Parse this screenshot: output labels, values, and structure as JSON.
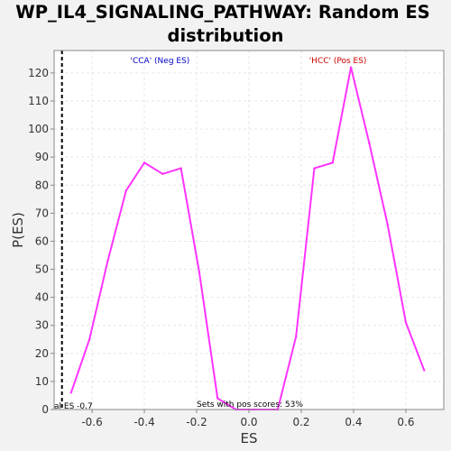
{
  "chart_data": {
    "type": "line",
    "title_line1": "WP_IL4_SIGNALING_PATHWAY: Random ES",
    "title_line2": "distribution",
    "xlabel": "ES",
    "ylabel": "P(ES)",
    "xlim": [
      -0.745,
      0.745
    ],
    "ylim": [
      0,
      128
    ],
    "x_ticks": [
      -0.6,
      -0.4,
      -0.2,
      0.0,
      0.2,
      0.4,
      0.6
    ],
    "x_tick_labels": [
      "-0.6",
      "-0.4",
      "-0.2",
      "0.0",
      "0.2",
      "0.4",
      "0.6"
    ],
    "y_ticks": [
      0,
      10,
      20,
      30,
      40,
      50,
      60,
      70,
      80,
      90,
      100,
      110,
      120
    ],
    "y_tick_labels": [
      "0",
      "10",
      "20",
      "30",
      "40",
      "50",
      "60",
      "70",
      "80",
      "90",
      "100",
      "110",
      "120"
    ],
    "grid": true,
    "series": [
      {
        "color": "#ff33ff",
        "x": [
          -0.68,
          -0.61,
          -0.54,
          -0.47,
          -0.4,
          -0.33,
          -0.26,
          -0.19,
          -0.12,
          -0.05,
          0.02,
          0.11,
          0.18,
          0.25,
          0.32,
          0.39,
          0.46,
          0.53,
          0.6,
          0.67
        ],
        "y": [
          6,
          25,
          53,
          78,
          88,
          84,
          86,
          49,
          4,
          0,
          0,
          0,
          26,
          86,
          88,
          122,
          95,
          66,
          31,
          14
        ]
      }
    ],
    "observed_es_line": {
      "x": -0.715,
      "label": "al ES -0.7",
      "color": "#000000"
    },
    "neg_label": {
      "text": "'CCA' (Neg ES)",
      "x": -0.34,
      "color": "#0000cc"
    },
    "pos_label": {
      "text": "'HCC' (Pos ES)",
      "x": 0.34,
      "color": "#cc0000"
    },
    "footer_note": "Sets with pos scores: 53%",
    "colors": {
      "background": "#f2f2f2",
      "plot_background": "#ffffff",
      "grid": "#e6e6e6",
      "frame": "#888888"
    }
  }
}
